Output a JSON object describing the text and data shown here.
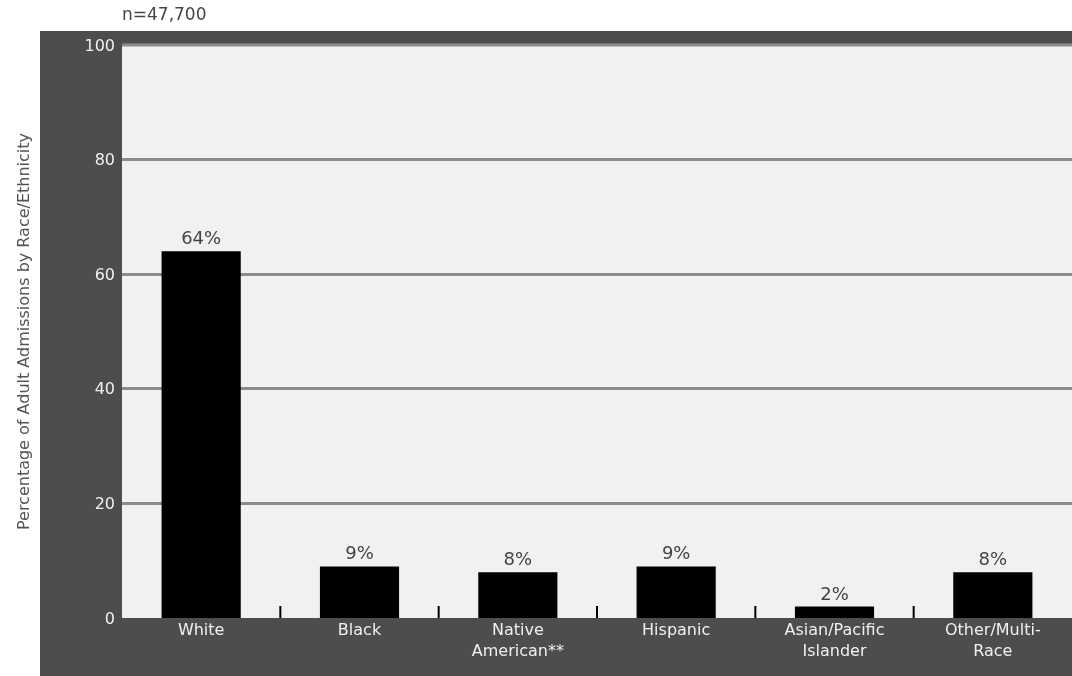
{
  "chart_data": {
    "type": "bar",
    "title": "n=47,700",
    "ylabel": "Percentage of Adult Admissions by Race/Ethnicity",
    "categories": [
      "White",
      "Black",
      "Native\nAmerican**",
      "Hispanic",
      "Asian/Pacific\nIslander",
      "Other/Multi-\nRace"
    ],
    "values": [
      64,
      9,
      8,
      9,
      2,
      8
    ],
    "color": "#000000",
    "value_labels": [
      "64%",
      "9%",
      "8%",
      "9%",
      "2%",
      "8%"
    ],
    "ylim": [
      0,
      100
    ],
    "yticks": [
      0,
      20,
      40,
      60,
      80,
      100
    ],
    "grid": "y"
  }
}
